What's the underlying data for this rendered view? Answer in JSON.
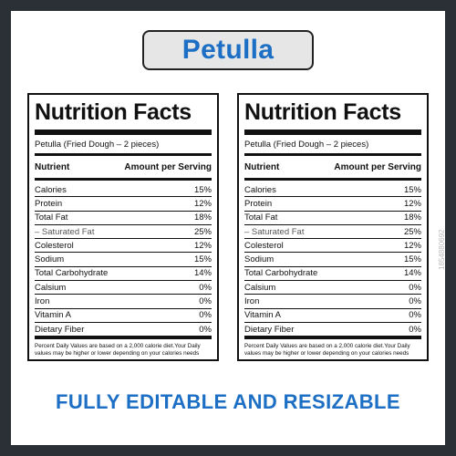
{
  "header": {
    "title": "Petulla"
  },
  "labels": [
    {
      "title": "Nutrition Facts",
      "product": "Petulla (Fried Dough – 2 pieces)",
      "col_nutrient": "Nutrient",
      "col_amount": "Amount per Serving",
      "rows": [
        {
          "name": "Calories",
          "value": "15%"
        },
        {
          "name": "Protein",
          "value": "12%"
        },
        {
          "name": "Total Fat",
          "value": "18%"
        },
        {
          "name": "– Saturated Fat",
          "value": "25%"
        },
        {
          "name": "Colesterol",
          "value": "12%"
        },
        {
          "name": "Sodium",
          "value": "15%"
        },
        {
          "name": "Total Carbohydrate",
          "value": "14%"
        },
        {
          "name": "Calsium",
          "value": "0%"
        },
        {
          "name": "Iron",
          "value": "0%"
        },
        {
          "name": "Vitamin A",
          "value": "0%"
        },
        {
          "name": "Dietary Fiber",
          "value": "0%"
        }
      ],
      "footnote": "Percent Daily Values are based on a 2,000 calorie diet.Your Daily values may be higher or lower depending on your calories needs"
    },
    {
      "title": "Nutrition Facts",
      "product": "Petulla (Fried Dough – 2 pieces)",
      "col_nutrient": "Nutrient",
      "col_amount": "Amount per Serving",
      "rows": [
        {
          "name": "Calories",
          "value": "15%"
        },
        {
          "name": "Protein",
          "value": "12%"
        },
        {
          "name": "Total Fat",
          "value": "18%"
        },
        {
          "name": "– Saturated Fat",
          "value": "25%"
        },
        {
          "name": "Colesterol",
          "value": "12%"
        },
        {
          "name": "Sodium",
          "value": "15%"
        },
        {
          "name": "Total Carbohydrate",
          "value": "14%"
        },
        {
          "name": "Calsium",
          "value": "0%"
        },
        {
          "name": "Iron",
          "value": "0%"
        },
        {
          "name": "Vitamin A",
          "value": "0%"
        },
        {
          "name": "Dietary Fiber",
          "value": "0%"
        }
      ],
      "footnote": "Percent Daily Values are based on a 2,000 calorie diet.Your Daily values may be higher or lower depending on your calories needs"
    }
  ],
  "footer": {
    "tagline": "FULLY EDITABLE AND RESIZABLE"
  },
  "watermark": {
    "id": "1854880692"
  },
  "colors": {
    "accent": "#1c6fc4",
    "frame": "#2b2f36",
    "pill_bg": "#e6e6e6"
  }
}
